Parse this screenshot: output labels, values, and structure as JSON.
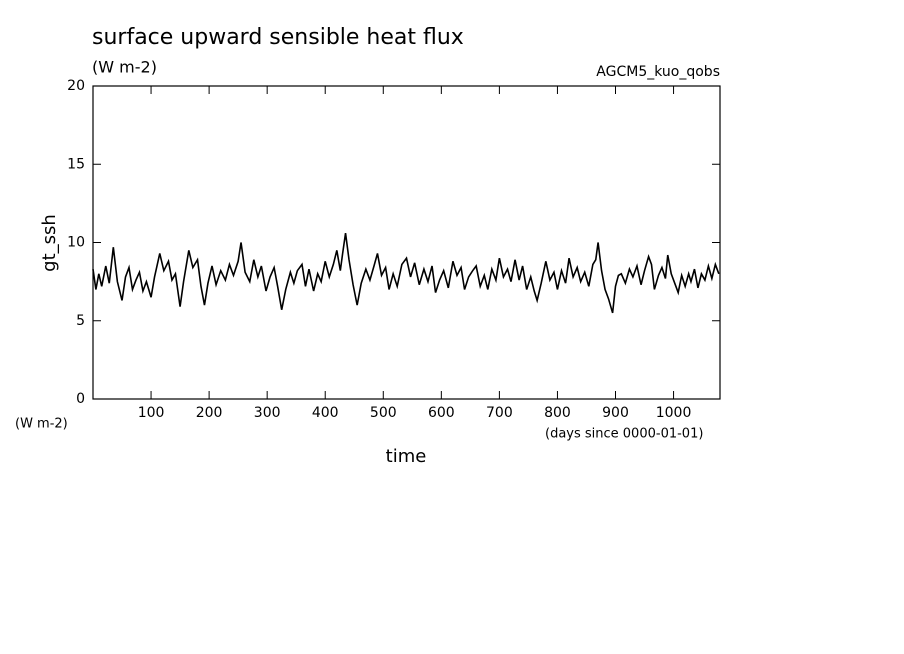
{
  "chart_data": {
    "type": "line",
    "title": "surface upward sensible heat flux",
    "subtitle": "(W m-2)",
    "annotation": "AGCM5_kuo_qobs",
    "y_label": "gt_ssh",
    "y_units": "(W m-2)",
    "x_label": "time",
    "x_units": "(days since 0000-01-01)",
    "color": "#000000",
    "xlim": [
      0,
      1080
    ],
    "ylim": [
      0,
      20
    ],
    "xticks": [
      100,
      200,
      300,
      400,
      500,
      600,
      700,
      800,
      900,
      1000
    ],
    "yticks": [
      0,
      5,
      10,
      15,
      20
    ],
    "x": [
      0,
      5,
      10,
      15,
      22,
      28,
      35,
      42,
      50,
      56,
      62,
      68,
      74,
      80,
      86,
      92,
      100,
      106,
      115,
      122,
      130,
      136,
      142,
      150,
      156,
      165,
      172,
      180,
      186,
      192,
      198,
      205,
      212,
      220,
      228,
      235,
      242,
      250,
      255,
      262,
      270,
      277,
      284,
      290,
      298,
      305,
      312,
      318,
      325,
      332,
      340,
      346,
      352,
      360,
      366,
      372,
      380,
      387,
      393,
      400,
      407,
      414,
      420,
      426,
      430,
      435,
      441,
      448,
      455,
      462,
      470,
      477,
      484,
      490,
      497,
      504,
      510,
      517,
      524,
      532,
      540,
      547,
      554,
      562,
      570,
      577,
      584,
      590,
      597,
      604,
      612,
      620,
      627,
      634,
      640,
      647,
      654,
      660,
      667,
      674,
      680,
      687,
      694,
      700,
      707,
      714,
      720,
      727,
      734,
      740,
      747,
      754,
      760,
      765,
      772,
      780,
      787,
      794,
      800,
      807,
      814,
      820,
      827,
      834,
      840,
      847,
      854,
      861,
      866,
      870,
      876,
      882,
      888,
      895,
      900,
      905,
      910,
      917,
      924,
      930,
      937,
      944,
      950,
      957,
      962,
      967,
      974,
      980,
      986,
      990,
      996,
      1002,
      1008,
      1014,
      1020,
      1026,
      1030,
      1036,
      1042,
      1048,
      1054,
      1060,
      1066,
      1072,
      1078
    ],
    "values": [
      8.3,
      7.0,
      8.0,
      7.2,
      8.5,
      7.4,
      9.7,
      7.5,
      6.3,
      7.8,
      8.4,
      7.0,
      7.6,
      8.1,
      6.9,
      7.5,
      6.5,
      7.8,
      9.3,
      8.2,
      8.8,
      7.6,
      8.0,
      5.9,
      7.5,
      9.5,
      8.4,
      8.9,
      7.2,
      6.0,
      7.4,
      8.5,
      7.3,
      8.2,
      7.6,
      8.6,
      7.9,
      8.8,
      10.0,
      8.1,
      7.5,
      8.9,
      7.8,
      8.5,
      6.9,
      7.8,
      8.4,
      7.2,
      5.7,
      7.0,
      8.1,
      7.4,
      8.2,
      8.6,
      7.2,
      8.3,
      6.9,
      8.0,
      7.5,
      8.8,
      7.8,
      8.6,
      9.5,
      8.2,
      9.3,
      10.6,
      8.9,
      7.3,
      6.0,
      7.4,
      8.3,
      7.6,
      8.5,
      9.3,
      7.9,
      8.4,
      7.0,
      8.0,
      7.2,
      8.6,
      9.0,
      7.8,
      8.7,
      7.3,
      8.3,
      7.5,
      8.5,
      6.8,
      7.6,
      8.2,
      7.1,
      8.8,
      7.9,
      8.4,
      7.0,
      7.8,
      8.2,
      8.5,
      7.2,
      7.9,
      7.0,
      8.3,
      7.6,
      9.0,
      7.8,
      8.3,
      7.5,
      8.9,
      7.6,
      8.5,
      7.0,
      7.8,
      6.9,
      6.3,
      7.4,
      8.8,
      7.6,
      8.1,
      7.0,
      8.2,
      7.4,
      9.0,
      7.8,
      8.4,
      7.5,
      8.1,
      7.2,
      8.6,
      8.9,
      10.0,
      8.2,
      7.0,
      6.4,
      5.5,
      7.2,
      7.9,
      8.0,
      7.4,
      8.3,
      7.8,
      8.5,
      7.3,
      8.2,
      9.1,
      8.6,
      7.0,
      7.9,
      8.4,
      7.7,
      9.2,
      8.0,
      7.4,
      6.8,
      7.9,
      7.2,
      8.0,
      7.5,
      8.3,
      7.1,
      8.0,
      7.6,
      8.5,
      7.7,
      8.6,
      8.0
    ]
  }
}
